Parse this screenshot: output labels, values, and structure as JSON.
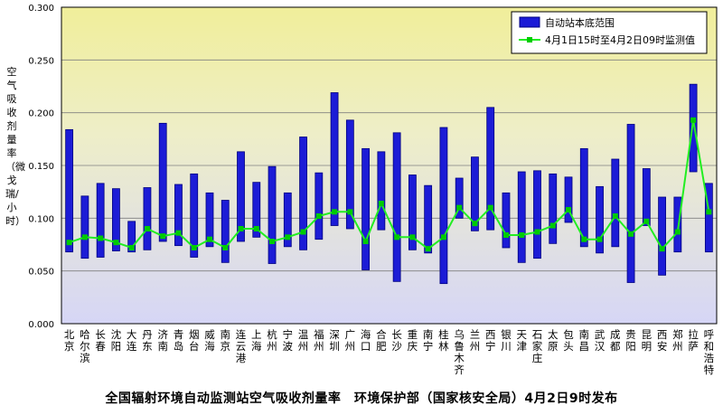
{
  "caption": "全国辐射环境自动监测站空气吸收剂量率　环境保护部（国家核安全局）4月2日9时发布",
  "chart_data": {
    "type": "bar",
    "ylabel": "空气吸收剂量率（微戈瑞/小时）",
    "ylim": [
      0,
      0.3
    ],
    "yticks": [
      "0.000",
      "0.050",
      "0.100",
      "0.150",
      "0.200",
      "0.250",
      "0.300"
    ],
    "ytick_values": [
      0,
      0.05,
      0.1,
      0.15,
      0.2,
      0.25,
      0.3
    ],
    "grid": true,
    "legend_position": "top-right",
    "legend": {
      "range_label": "自动站本底范围",
      "line_label": "4月1日15时至4月2日09时监测值"
    },
    "colors": {
      "bar_fill": "#1c1cd6",
      "bar_edge": "#000080",
      "line": "#22ee22",
      "marker": "#00cc00",
      "bg_top": "#f0ee9a",
      "bg_bottom": "#d6d6f6",
      "grid": "#808080"
    },
    "categories": [
      "北京",
      "哈尔滨",
      "长春",
      "沈阳",
      "大连",
      "丹东",
      "济南",
      "青岛",
      "烟台",
      "威海",
      "南京",
      "连云港",
      "上海",
      "杭州",
      "宁波",
      "温州",
      "福州",
      "深圳",
      "广州",
      "海口",
      "合肥",
      "长沙",
      "重庆",
      "南宁",
      "桂林",
      "乌鲁木齐",
      "兰州",
      "西宁",
      "银川",
      "天津",
      "石家庄",
      "太原",
      "包头",
      "南昌",
      "武汉",
      "成都",
      "贵阳",
      "昆明",
      "西安",
      "郑州",
      "拉萨",
      "呼和浩特"
    ],
    "category_lines": [
      [
        "北",
        "京"
      ],
      [
        "哈",
        "尔",
        "滨"
      ],
      [
        "长",
        "春"
      ],
      [
        "沈",
        "阳"
      ],
      [
        "大",
        "连"
      ],
      [
        "丹",
        "东"
      ],
      [
        "济",
        "南"
      ],
      [
        "青",
        "岛"
      ],
      [
        "烟",
        "台"
      ],
      [
        "威",
        "海"
      ],
      [
        "南",
        "京"
      ],
      [
        "连",
        "云",
        "港"
      ],
      [
        "上",
        "海"
      ],
      [
        "杭",
        "州"
      ],
      [
        "宁",
        "波"
      ],
      [
        "温",
        "州"
      ],
      [
        "福",
        "州"
      ],
      [
        "深",
        "圳"
      ],
      [
        "广",
        "州"
      ],
      [
        "海",
        "口"
      ],
      [
        "合",
        "肥"
      ],
      [
        "长",
        "沙"
      ],
      [
        "重",
        "庆"
      ],
      [
        "南",
        "宁"
      ],
      [
        "桂",
        "林"
      ],
      [
        "乌",
        "鲁",
        "木",
        "齐"
      ],
      [
        "兰",
        "州"
      ],
      [
        "西",
        "宁"
      ],
      [
        "银",
        "川"
      ],
      [
        "天",
        "津"
      ],
      [
        "石",
        "家",
        "庄"
      ],
      [
        "太",
        "原"
      ],
      [
        "包",
        "头"
      ],
      [
        "南",
        "昌"
      ],
      [
        "武",
        "汉"
      ],
      [
        "成",
        "都"
      ],
      [
        "贵",
        "阳"
      ],
      [
        "昆",
        "明"
      ],
      [
        "西",
        "安"
      ],
      [
        "郑",
        "州"
      ],
      [
        "拉",
        "萨"
      ],
      [
        "呼",
        "和",
        "浩",
        "特"
      ]
    ],
    "series": [
      {
        "name": "自动站本底范围",
        "type": "range",
        "low": [
          0.068,
          0.062,
          0.063,
          0.069,
          0.068,
          0.07,
          0.078,
          0.074,
          0.063,
          0.073,
          0.058,
          0.078,
          0.082,
          0.057,
          0.073,
          0.07,
          0.08,
          0.093,
          0.09,
          0.051,
          0.089,
          0.04,
          0.07,
          0.067,
          0.038,
          0.1,
          0.088,
          0.089,
          0.072,
          0.058,
          0.062,
          0.076,
          0.096,
          0.073,
          0.067,
          0.073,
          0.039,
          0.093,
          0.046,
          0.068,
          0.144,
          0.068
        ],
        "high": [
          0.184,
          0.121,
          0.133,
          0.128,
          0.097,
          0.129,
          0.19,
          0.132,
          0.142,
          0.124,
          0.117,
          0.163,
          0.134,
          0.149,
          0.124,
          0.177,
          0.143,
          0.219,
          0.193,
          0.166,
          0.163,
          0.181,
          0.141,
          0.131,
          0.186,
          0.138,
          0.158,
          0.205,
          0.124,
          0.144,
          0.145,
          0.142,
          0.139,
          0.166,
          0.13,
          0.156,
          0.189,
          0.147,
          0.12,
          0.12,
          0.227,
          0.133
        ]
      },
      {
        "name": "4月1日15时至4月2日09时监测值",
        "type": "line",
        "values": [
          0.077,
          0.082,
          0.081,
          0.077,
          0.072,
          0.09,
          0.083,
          0.086,
          0.072,
          0.08,
          0.072,
          0.09,
          0.09,
          0.078,
          0.082,
          0.087,
          0.102,
          0.106,
          0.106,
          0.078,
          0.114,
          0.082,
          0.082,
          0.071,
          0.082,
          0.11,
          0.095,
          0.11,
          0.084,
          0.084,
          0.087,
          0.093,
          0.108,
          0.08,
          0.08,
          0.102,
          0.085,
          0.097,
          0.071,
          0.087,
          0.193,
          0.106
        ]
      }
    ]
  }
}
